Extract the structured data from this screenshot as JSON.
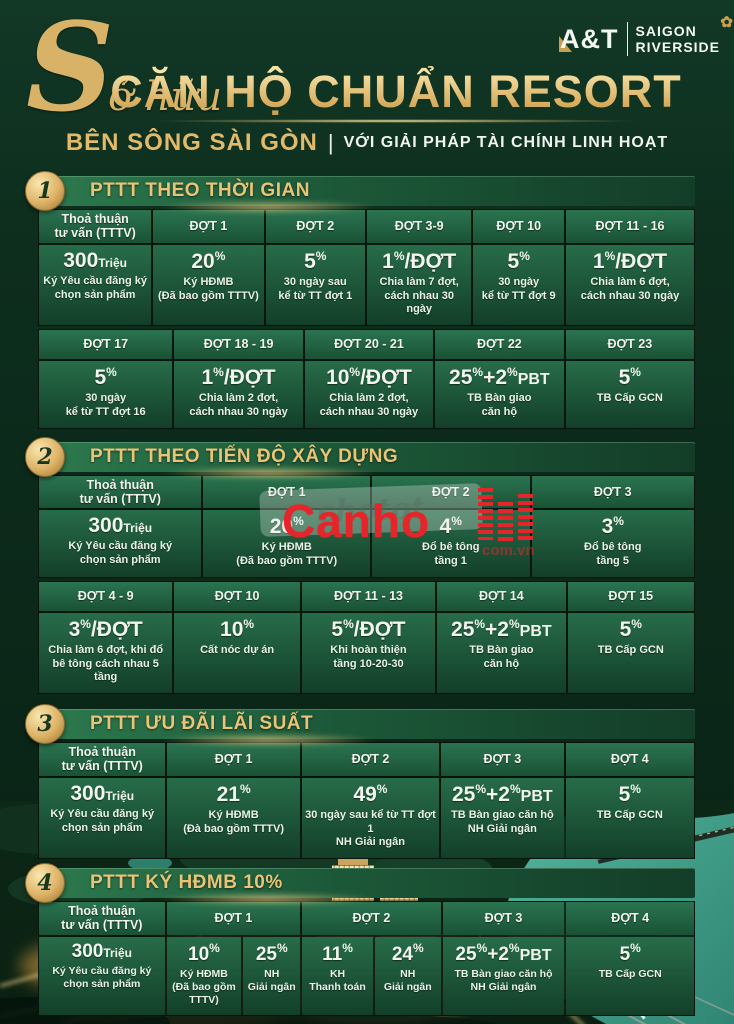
{
  "header": {
    "script_title": "Sở hữu",
    "main_title": "CĂN HỘ CHUẨN RESORT",
    "sub_gold": "BÊN SÔNG SÀI GÒN",
    "sub_sep": "|",
    "sub_white": "VỚI GIẢI PHÁP TÀI CHÍNH LINH HOẠT",
    "logo": {
      "brand": "A&T",
      "line1": "SAIGON",
      "line2": "RIVERSIDE",
      "flower_icon": "✿"
    }
  },
  "watermark": {
    "ghost": "chotot",
    "brand": "Canho",
    "domain": "com.vn"
  },
  "colors": {
    "gold_accent": "#d9b667",
    "deep_green_bg": "#0c2b1b",
    "table_green": "#206044",
    "watermark_red": "#e4262b",
    "river_teal": "#3a9b8a"
  },
  "sections": [
    {
      "number": "1",
      "title": "PTTT THEO THỜI GIAN",
      "tables": [
        {
          "widths": [
            114,
            112,
            101,
            106,
            92,
            130
          ],
          "head": [
            {
              "label": "Thoả thuận\ntư vấn (TTTV)"
            },
            {
              "label": "ĐỢT 1"
            },
            {
              "label": "ĐỢT 2"
            },
            {
              "label": "ĐỢT 3-9"
            },
            {
              "label": "ĐỢT 10"
            },
            {
              "label": "ĐỢT 11 - 16"
            }
          ],
          "body": [
            {
              "parts": [
                {
                  "t": "300",
                  "s": "b"
                },
                {
                  "t": "Triệu",
                  "s": "u"
                }
              ],
              "desc": "Ký Yêu cầu đăng ký\nchọn sản phẩm"
            },
            {
              "parts": [
                {
                  "t": "20",
                  "s": "b"
                },
                {
                  "t": "%",
                  "s": "s"
                }
              ],
              "desc": "Ký HĐMB\n(Đã bao gồm TTTV)"
            },
            {
              "parts": [
                {
                  "t": "5",
                  "s": "b"
                },
                {
                  "t": "%",
                  "s": "s"
                }
              ],
              "desc": "30 ngày sau\nkể từ TT đợt 1"
            },
            {
              "parts": [
                {
                  "t": "1",
                  "s": "b"
                },
                {
                  "t": "%",
                  "s": "s"
                },
                {
                  "t": "/ĐỢT",
                  "s": "b"
                }
              ],
              "desc": "Chia làm 7 đợt,\ncách nhau 30 ngày"
            },
            {
              "parts": [
                {
                  "t": "5",
                  "s": "b"
                },
                {
                  "t": "%",
                  "s": "s"
                }
              ],
              "desc": "30 ngày\nkể từ TT đợt 9"
            },
            {
              "parts": [
                {
                  "t": "1",
                  "s": "b"
                },
                {
                  "t": "%",
                  "s": "s"
                },
                {
                  "t": "/ĐỢT",
                  "s": "b"
                }
              ],
              "desc": "Chia làm 6 đợt,\ncách nhau 30 ngày"
            }
          ]
        },
        {
          "widths": [
            135,
            130,
            130,
            130,
            130
          ],
          "head": [
            {
              "label": "ĐỢT 17"
            },
            {
              "label": "ĐỢT 18 - 19"
            },
            {
              "label": "ĐỢT 20 - 21"
            },
            {
              "label": "ĐỢT 22"
            },
            {
              "label": "ĐỢT 23"
            }
          ],
          "body": [
            {
              "parts": [
                {
                  "t": "5",
                  "s": "b"
                },
                {
                  "t": "%",
                  "s": "s"
                }
              ],
              "desc": "30 ngày\nkể từ TT đợt 16"
            },
            {
              "parts": [
                {
                  "t": "1",
                  "s": "b"
                },
                {
                  "t": "%",
                  "s": "s"
                },
                {
                  "t": "/ĐỢT",
                  "s": "b"
                }
              ],
              "desc": "Chia làm 2 đợt,\ncách nhau 30 ngày"
            },
            {
              "parts": [
                {
                  "t": "10",
                  "s": "b"
                },
                {
                  "t": "%",
                  "s": "s"
                },
                {
                  "t": "/ĐỢT",
                  "s": "b"
                }
              ],
              "desc": "Chia làm 2 đợt,\ncách nhau 30 ngày"
            },
            {
              "parts": [
                {
                  "t": "25",
                  "s": "b"
                },
                {
                  "t": "%",
                  "s": "s"
                },
                {
                  "t": "+2",
                  "s": "b"
                },
                {
                  "t": "%",
                  "s": "s"
                },
                {
                  "t": "PBT",
                  "s": "m"
                }
              ],
              "desc": "TB Bàn giao\ncăn hộ"
            },
            {
              "parts": [
                {
                  "t": "5",
                  "s": "b"
                },
                {
                  "t": "%",
                  "s": "s"
                }
              ],
              "desc": "TB Cấp GCN"
            }
          ]
        }
      ]
    },
    {
      "number": "2",
      "title": "PTTT THEO TIẾN ĐỘ XÂY DỰNG",
      "tables": [
        {
          "widths": [
            164,
            168,
            159,
            164
          ],
          "head": [
            {
              "label": "Thoả thuận\ntư vấn (TTTV)"
            },
            {
              "label": "ĐỢT 1"
            },
            {
              "label": "ĐỢT 2"
            },
            {
              "label": "ĐỢT 3"
            }
          ],
          "body": [
            {
              "parts": [
                {
                  "t": "300",
                  "s": "b"
                },
                {
                  "t": "Triệu",
                  "s": "u"
                }
              ],
              "desc": "Ký Yêu cầu đăng ký\nchọn sản phẩm"
            },
            {
              "parts": [
                {
                  "t": "20",
                  "s": "b"
                },
                {
                  "t": "%",
                  "s": "s"
                }
              ],
              "desc": "Ký HĐMB\n(Đã bao gồm TTTV)"
            },
            {
              "parts": [
                {
                  "t": "4",
                  "s": "b"
                },
                {
                  "t": "%",
                  "s": "s"
                }
              ],
              "desc": "Đổ bê tông\ntầng 1"
            },
            {
              "parts": [
                {
                  "t": "3",
                  "s": "b"
                },
                {
                  "t": "%",
                  "s": "s"
                }
              ],
              "desc": "Đổ bê tông\ntầng 5"
            }
          ]
        },
        {
          "widths": [
            135,
            127,
            135,
            130,
            128
          ],
          "head": [
            {
              "label": "ĐỢT 4 - 9"
            },
            {
              "label": "ĐỢT 10"
            },
            {
              "label": "ĐỢT 11 - 13"
            },
            {
              "label": "ĐỢT 14"
            },
            {
              "label": "ĐỢT 15"
            }
          ],
          "body": [
            {
              "parts": [
                {
                  "t": "3",
                  "s": "b"
                },
                {
                  "t": "%",
                  "s": "s"
                },
                {
                  "t": "/ĐỢT",
                  "s": "b"
                }
              ],
              "desc": "Chia làm 6 đợt, khi đổ\nbê tông cách nhau 5 tầng"
            },
            {
              "parts": [
                {
                  "t": "10",
                  "s": "b"
                },
                {
                  "t": "%",
                  "s": "s"
                }
              ],
              "desc": "Cất nóc dự án"
            },
            {
              "parts": [
                {
                  "t": "5",
                  "s": "b"
                },
                {
                  "t": "%",
                  "s": "s"
                },
                {
                  "t": "/ĐỢT",
                  "s": "b"
                }
              ],
              "desc": "Khi hoàn thiện\ntầng 10-20-30"
            },
            {
              "parts": [
                {
                  "t": "25",
                  "s": "b"
                },
                {
                  "t": "%",
                  "s": "s"
                },
                {
                  "t": "+2",
                  "s": "b"
                },
                {
                  "t": "%",
                  "s": "s"
                },
                {
                  "t": "PBT",
                  "s": "m"
                }
              ],
              "desc": "TB Bàn giao\ncăn hộ"
            },
            {
              "parts": [
                {
                  "t": "5",
                  "s": "b"
                },
                {
                  "t": "%",
                  "s": "s"
                }
              ],
              "desc": "TB Cấp GCN"
            }
          ]
        }
      ]
    },
    {
      "number": "3",
      "title": "PTTT ƯU ĐÃI LÃI SUẤT",
      "tables": [
        {
          "widths": [
            128,
            134,
            139,
            124,
            130
          ],
          "head": [
            {
              "label": "Thoả thuận\ntư vấn (TTTV)"
            },
            {
              "label": "ĐỢT 1"
            },
            {
              "label": "ĐỢT 2"
            },
            {
              "label": "ĐỢT 3"
            },
            {
              "label": "ĐỢT 4"
            }
          ],
          "body": [
            {
              "parts": [
                {
                  "t": "300",
                  "s": "b"
                },
                {
                  "t": "Triệu",
                  "s": "u"
                }
              ],
              "desc": "Ký Yêu cầu đăng ký\nchọn sản phẩm"
            },
            {
              "parts": [
                {
                  "t": "21",
                  "s": "b"
                },
                {
                  "t": "%",
                  "s": "s"
                }
              ],
              "desc": "Ký HĐMB\n(Đà bao gồm TTTV)"
            },
            {
              "parts": [
                {
                  "t": "49",
                  "s": "b"
                },
                {
                  "t": "%",
                  "s": "s"
                }
              ],
              "desc": "30 ngày sau kể từ TT đợt 1\nNH Giải ngân"
            },
            {
              "parts": [
                {
                  "t": "25",
                  "s": "b"
                },
                {
                  "t": "%",
                  "s": "s"
                },
                {
                  "t": "+2",
                  "s": "b"
                },
                {
                  "t": "%",
                  "s": "s"
                },
                {
                  "t": "PBT",
                  "s": "m"
                }
              ],
              "desc": "TB Bàn giao căn hộ\nNH Giải ngân"
            },
            {
              "parts": [
                {
                  "t": "5",
                  "s": "b"
                },
                {
                  "t": "%",
                  "s": "s"
                }
              ],
              "desc": "TB Cấp GCN"
            }
          ]
        }
      ]
    },
    {
      "number": "4",
      "title": "PTTT KÝ HĐMB 10%",
      "tables": [
        {
          "widths": [
            128,
            76,
            58,
            72,
            67,
            124,
            130
          ],
          "head": [
            {
              "label": "Thoả thuận\ntư vấn (TTTV)",
              "span": 1
            },
            {
              "label": "ĐỢT 1",
              "span": 2
            },
            {
              "label": "ĐỢT 2",
              "span": 2
            },
            {
              "label": "ĐỢT 3",
              "span": 1
            },
            {
              "label": "ĐỢT 4",
              "span": 1
            }
          ],
          "body": [
            {
              "parts": [
                {
                  "t": "300",
                  "s": "b"
                },
                {
                  "t": "Triệu",
                  "s": "u"
                }
              ],
              "desc": "Ký Yêu cầu đăng ký\nchọn sản phẩm"
            },
            {
              "parts": [
                {
                  "t": "10",
                  "s": "b"
                },
                {
                  "t": "%",
                  "s": "s"
                }
              ],
              "desc": "Ký HĐMB\n(Đã bao gồm\nTTTV)"
            },
            {
              "parts": [
                {
                  "t": "25",
                  "s": "b"
                },
                {
                  "t": "%",
                  "s": "s"
                }
              ],
              "desc": "NH\nGiải ngân"
            },
            {
              "parts": [
                {
                  "t": "11",
                  "s": "b"
                },
                {
                  "t": "%",
                  "s": "s"
                }
              ],
              "desc": "KH\nThanh toán"
            },
            {
              "parts": [
                {
                  "t": "24",
                  "s": "b"
                },
                {
                  "t": "%",
                  "s": "s"
                }
              ],
              "desc": "NH\nGiải ngân"
            },
            {
              "parts": [
                {
                  "t": "25",
                  "s": "b"
                },
                {
                  "t": "%",
                  "s": "s"
                },
                {
                  "t": "+2",
                  "s": "b"
                },
                {
                  "t": "%",
                  "s": "s"
                },
                {
                  "t": "PBT",
                  "s": "m"
                }
              ],
              "desc": "TB Bàn giao căn hộ\nNH Giải ngân"
            },
            {
              "parts": [
                {
                  "t": "5",
                  "s": "b"
                },
                {
                  "t": "%",
                  "s": "s"
                }
              ],
              "desc": "TB Cấp GCN"
            }
          ]
        }
      ]
    }
  ]
}
